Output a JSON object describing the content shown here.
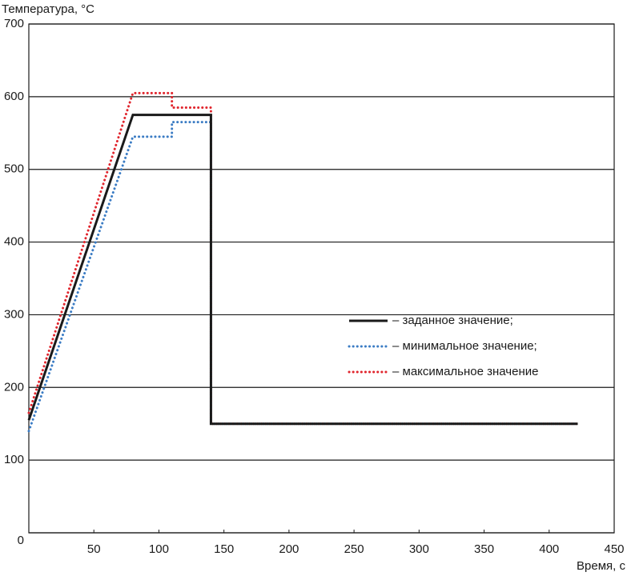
{
  "chart_data": {
    "type": "line",
    "y_label": "Температура, °C",
    "x_label": "Время, с",
    "xlim": [
      0,
      450
    ],
    "ylim": [
      0,
      700
    ],
    "xticks": [
      50,
      100,
      150,
      200,
      250,
      300,
      350,
      400,
      450
    ],
    "yticks": [
      0,
      100,
      200,
      300,
      400,
      500,
      600,
      700
    ],
    "grid": true,
    "series": [
      {
        "name": "– заданное значение;",
        "color": "#1a1a1a",
        "linestyle": "solid",
        "x": [
          0,
          80,
          140,
          140,
          422
        ],
        "values": [
          155,
          575,
          575,
          150,
          150
        ]
      },
      {
        "name": "– минимальное значение;",
        "color": "#3b7cc4",
        "linestyle": "dotted",
        "x": [
          0,
          80,
          110,
          110,
          140,
          140,
          422
        ],
        "values": [
          140,
          545,
          545,
          565,
          565,
          150,
          150
        ]
      },
      {
        "name": "– максимальное значение",
        "color": "#e0252d",
        "linestyle": "dotted",
        "x": [
          0,
          80,
          110,
          110,
          140,
          140,
          422
        ],
        "values": [
          165,
          605,
          605,
          585,
          585,
          150,
          150
        ]
      }
    ]
  }
}
